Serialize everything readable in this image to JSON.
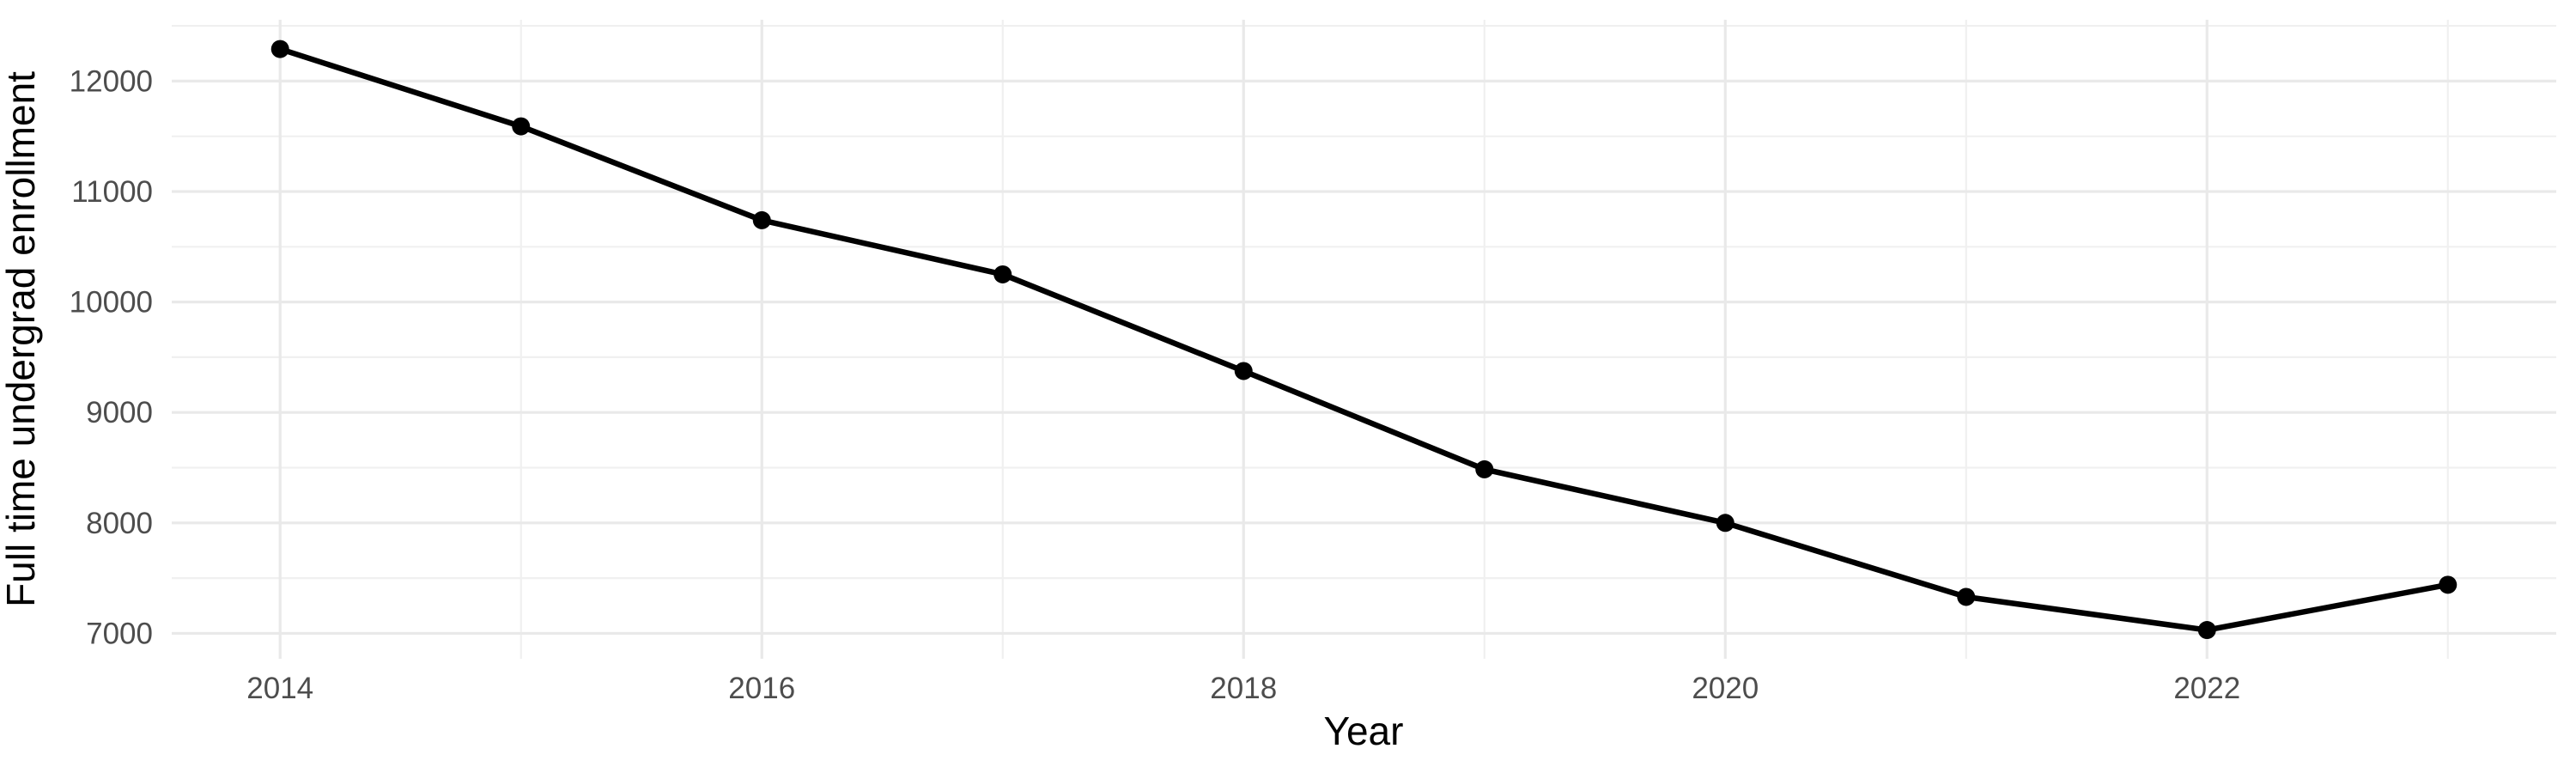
{
  "chart_data": {
    "type": "line",
    "title": "",
    "xlabel": "Year",
    "ylabel": "Full time undergrad enrollment",
    "x": [
      2014,
      2015,
      2016,
      2017,
      2018,
      2019,
      2020,
      2021,
      2022,
      2023
    ],
    "values": [
      12290,
      11590,
      10740,
      10250,
      9375,
      8485,
      8000,
      7330,
      7030,
      7440
    ],
    "series_name": "Full time undergrad enrollment",
    "x_major_ticks": [
      2014,
      2016,
      2018,
      2020,
      2022
    ],
    "x_minor_ticks": [
      2015,
      2017,
      2019,
      2021,
      2023
    ],
    "y_major_ticks": [
      7000,
      8000,
      9000,
      10000,
      11000,
      12000
    ],
    "y_minor_ticks": [
      7500,
      8500,
      9500,
      10500,
      11500,
      12500
    ],
    "xlim": [
      2013.55,
      2023.45
    ],
    "ylim": [
      6770,
      12555
    ],
    "grid": "on",
    "legend": "none",
    "colors": {
      "line": "#000000",
      "point": "#000000",
      "grid_major": "#e9e9e9",
      "grid_minor": "#f0f0f0",
      "tick_label": "#4d4d4d",
      "axis_title": "#000000",
      "background": "#ffffff"
    }
  }
}
